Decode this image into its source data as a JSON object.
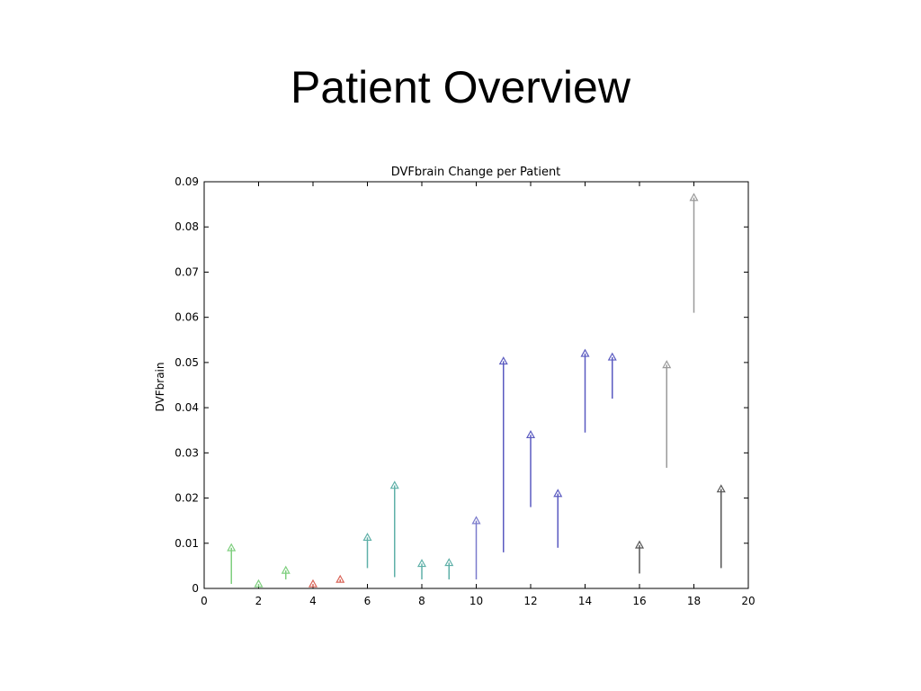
{
  "slide": {
    "title": "Patient Overview"
  },
  "chart_data": {
    "type": "scatter",
    "title": "DVFbrain Change per Patient",
    "xlabel": "",
    "ylabel": "DVFbrain",
    "xlim": [
      0,
      20
    ],
    "ylim": [
      0,
      0.09
    ],
    "x_ticks": [
      0,
      2,
      4,
      6,
      8,
      10,
      12,
      14,
      16,
      18,
      20
    ],
    "y_ticks": [
      0,
      0.01,
      0.02,
      0.03,
      0.04,
      0.05,
      0.06,
      0.07,
      0.08,
      0.09
    ],
    "y_tick_labels": [
      "0",
      "0.01",
      "0.02",
      "0.03",
      "0.04",
      "0.05",
      "0.06",
      "0.07",
      "0.08",
      "0.09"
    ],
    "grid": false,
    "marker": "triangle-up",
    "points": [
      {
        "x": 1,
        "start": 0.001,
        "end": 0.009,
        "color": "#7fcf7f"
      },
      {
        "x": 2,
        "start": 0.0005,
        "end": 0.001,
        "color": "#7fcf7f"
      },
      {
        "x": 3,
        "start": 0.002,
        "end": 0.004,
        "color": "#7fcf7f"
      },
      {
        "x": 4,
        "start": 0.0005,
        "end": 0.001,
        "color": "#d9665a"
      },
      {
        "x": 5,
        "start": 0.0015,
        "end": 0.002,
        "color": "#d9665a"
      },
      {
        "x": 6,
        "start": 0.0045,
        "end": 0.0113,
        "color": "#5fb0a8"
      },
      {
        "x": 7,
        "start": 0.0025,
        "end": 0.0228,
        "color": "#5fb0a8"
      },
      {
        "x": 8,
        "start": 0.002,
        "end": 0.0055,
        "color": "#5fb0a8"
      },
      {
        "x": 9,
        "start": 0.002,
        "end": 0.0057,
        "color": "#5fb0a8"
      },
      {
        "x": 10,
        "start": 0.002,
        "end": 0.015,
        "color": "#7a7acc"
      },
      {
        "x": 11,
        "start": 0.008,
        "end": 0.0503,
        "color": "#5a5ac0"
      },
      {
        "x": 12,
        "start": 0.018,
        "end": 0.034,
        "color": "#5a5ac0"
      },
      {
        "x": 13,
        "start": 0.009,
        "end": 0.021,
        "color": "#5a5ac0"
      },
      {
        "x": 14,
        "start": 0.0345,
        "end": 0.052,
        "color": "#5a5ac0"
      },
      {
        "x": 15,
        "start": 0.042,
        "end": 0.0512,
        "color": "#5a5ac0"
      },
      {
        "x": 16,
        "start": 0.0033,
        "end": 0.0096,
        "color": "#555555"
      },
      {
        "x": 17,
        "start": 0.0267,
        "end": 0.0495,
        "color": "#9a9a9a"
      },
      {
        "x": 18,
        "start": 0.061,
        "end": 0.0865,
        "color": "#9a9a9a"
      },
      {
        "x": 19,
        "start": 0.0045,
        "end": 0.022,
        "color": "#555555"
      }
    ]
  }
}
